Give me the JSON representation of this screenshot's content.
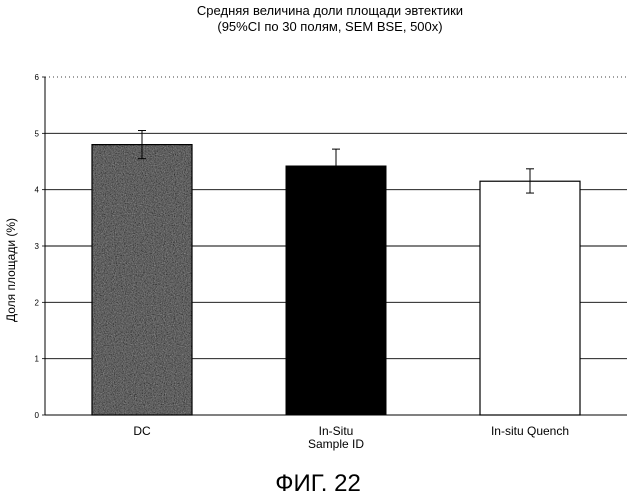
{
  "chart_data": {
    "type": "bar",
    "title": "Средняя величина доли площади эвтектики",
    "subtitle": "(95%CI по 30 полям, SEM BSE, 500x)",
    "xlabel": "",
    "ylabel": "Доля площади (%)",
    "categories": [
      [
        "DC"
      ],
      [
        "In-Situ",
        "Sample ID"
      ],
      [
        "In-situ Quench"
      ]
    ],
    "values": [
      4.8,
      4.42,
      4.15
    ],
    "error_upper": [
      5.05,
      4.72,
      4.37
    ],
    "error_lower": [
      4.55,
      4.12,
      3.94
    ],
    "ylim": [
      0,
      6
    ],
    "yticks": [
      "0",
      "1",
      "2",
      "3",
      "4",
      "5",
      "6"
    ],
    "grid": true,
    "bar_fills": [
      "speckled-dark-gray",
      "solid-black",
      "white"
    ],
    "colors": {
      "dark": "#4a4a4a",
      "black": "#000000",
      "white": "#ffffff"
    }
  },
  "figure_caption": "ФИГ. 22"
}
